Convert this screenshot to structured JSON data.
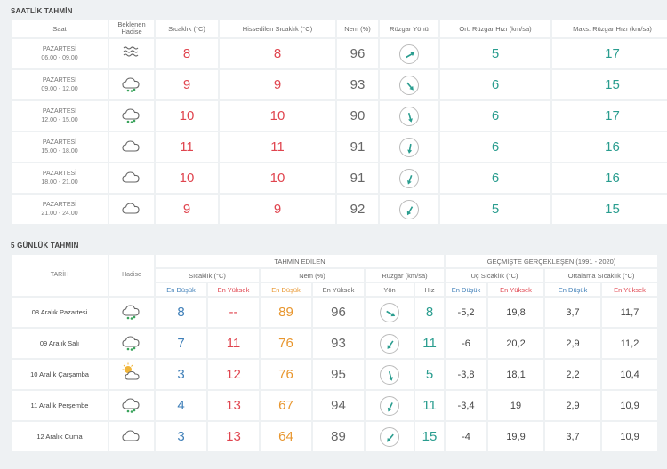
{
  "hourly": {
    "title": "SAATLİK TAHMİN",
    "headers": [
      "Saat",
      "Beklenen Hadise",
      "Sıcaklık (°C)",
      "Hissedilen Sıcaklık (°C)",
      "Nem (%)",
      "Rüzgar Yönü",
      "Ort. Rüzgar Hızı (km/sa)",
      "Maks. Rüzgar Hızı (km/sa)"
    ],
    "rows": [
      {
        "day": "PAZARTESİ",
        "time": "06.00 - 09.00",
        "icon": "fog-icon",
        "temp": "8",
        "feels": "8",
        "hum": "96",
        "wind_deg": 60,
        "avg": "5",
        "max": "17"
      },
      {
        "day": "PAZARTESİ",
        "time": "09.00 - 12.00",
        "icon": "rain-cloud-icon",
        "temp": "9",
        "feels": "9",
        "hum": "93",
        "wind_deg": 140,
        "avg": "6",
        "max": "15"
      },
      {
        "day": "PAZARTESİ",
        "time": "12.00 - 15.00",
        "icon": "rain-cloud-icon",
        "temp": "10",
        "feels": "10",
        "hum": "90",
        "wind_deg": 165,
        "avg": "6",
        "max": "17"
      },
      {
        "day": "PAZARTESİ",
        "time": "15.00 - 18.00",
        "icon": "cloud-icon",
        "temp": "11",
        "feels": "11",
        "hum": "91",
        "wind_deg": 190,
        "avg": "6",
        "max": "16"
      },
      {
        "day": "PAZARTESİ",
        "time": "18.00 - 21.00",
        "icon": "cloud-icon",
        "temp": "10",
        "feels": "10",
        "hum": "91",
        "wind_deg": 200,
        "avg": "6",
        "max": "16"
      },
      {
        "day": "PAZARTESİ",
        "time": "21.00 - 24.00",
        "icon": "cloud-icon",
        "temp": "9",
        "feels": "9",
        "hum": "92",
        "wind_deg": 210,
        "avg": "5",
        "max": "15"
      }
    ]
  },
  "daily": {
    "title": "5 GÜNLÜK TAHMİN",
    "header_tarih": "TARİH",
    "header_hadise": "Hadise",
    "header_tahmin": "TAHMİN EDİLEN",
    "header_gecmis": "GEÇMİŞTE GERÇEKLEŞEN (1991 - 2020)",
    "header_sicaklik": "Sıcaklık (°C)",
    "header_nem": "Nem (%)",
    "header_ruzgar": "Rüzgar (km/sa)",
    "header_uc": "Uç Sıcaklık (°C)",
    "header_ort": "Ortalama Sıcaklık (°C)",
    "en_dusuk": "En Düşük",
    "en_yuksek": "En Yüksek",
    "yon": "Yön",
    "hiz": "Hız",
    "rows": [
      {
        "date": "08 Aralık Pazartesi",
        "icon": "rain-cloud-icon",
        "min": "8",
        "max": "--",
        "nem_min": "89",
        "nem_max": "96",
        "wind_deg": 120,
        "speed": "8",
        "uc_min": "-5,2",
        "uc_max": "19,8",
        "ort_min": "3,7",
        "ort_max": "11,7"
      },
      {
        "date": "09 Aralık Salı",
        "icon": "rain-cloud-icon",
        "min": "7",
        "max": "11",
        "nem_min": "76",
        "nem_max": "93",
        "wind_deg": 215,
        "speed": "11",
        "uc_min": "-6",
        "uc_max": "20,2",
        "ort_min": "2,9",
        "ort_max": "11,2"
      },
      {
        "date": "10 Aralık Çarşamba",
        "icon": "sun-cloud-icon",
        "min": "3",
        "max": "12",
        "nem_min": "76",
        "nem_max": "95",
        "wind_deg": 165,
        "speed": "5",
        "uc_min": "-3,8",
        "uc_max": "18,1",
        "ort_min": "2,2",
        "ort_max": "10,4"
      },
      {
        "date": "11 Aralık Perşembe",
        "icon": "rain-cloud-icon",
        "min": "4",
        "max": "13",
        "nem_min": "67",
        "nem_max": "94",
        "wind_deg": 205,
        "speed": "11",
        "uc_min": "-3,4",
        "uc_max": "19",
        "ort_min": "2,9",
        "ort_max": "10,9"
      },
      {
        "date": "12 Aralık Cuma",
        "icon": "cloud-icon",
        "min": "3",
        "max": "13",
        "nem_min": "64",
        "nem_max": "89",
        "wind_deg": 220,
        "speed": "15",
        "uc_min": "-4",
        "uc_max": "19,9",
        "ort_min": "3,7",
        "ort_max": "10,9"
      }
    ]
  }
}
